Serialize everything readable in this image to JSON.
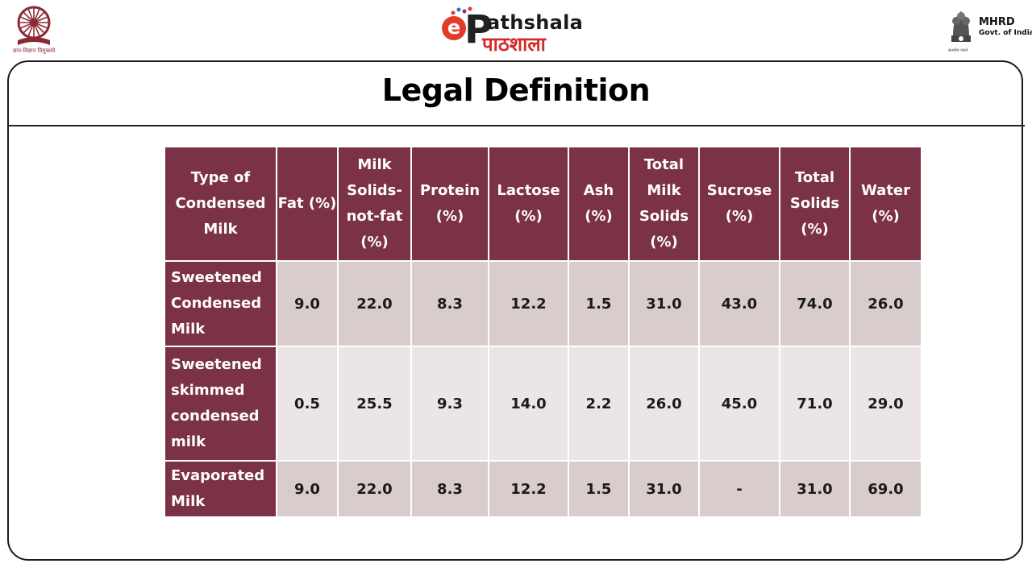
{
  "header": {
    "left_logo_tagline": "ज्ञान-विज्ञान विमुक्तये",
    "center_logo": {
      "letter_e": "e",
      "letter_p": "P",
      "word_latin": "athshala",
      "word_hindi": "पाठशाला"
    },
    "right_logo": {
      "name": "MHRD",
      "subtitle": "Govt. of India",
      "motto": "सत्यमेव जयते"
    }
  },
  "slide": {
    "title": "Legal Definition"
  },
  "table": {
    "headers": [
      "Type of Condensed Milk",
      "Fat (%)",
      "Milk Solids-not-fat (%)",
      "Protein (%)",
      "Lactose (%)",
      "Ash (%)",
      "Total Milk Solids (%)",
      "Sucrose (%)",
      "Total Solids (%)",
      "Water (%)"
    ],
    "rows": [
      {
        "type": "Sweetened Condensed Milk",
        "values": [
          "9.0",
          "22.0",
          "8.3",
          "12.2",
          "1.5",
          "31.0",
          "43.0",
          "74.0",
          "26.0"
        ]
      },
      {
        "type": "Sweetened skimmed condensed milk",
        "values": [
          "0.5",
          "25.5",
          "9.3",
          "14.0",
          "2.2",
          "26.0",
          "45.0",
          "71.0",
          "29.0"
        ]
      },
      {
        "type": "Evaporated Milk",
        "values": [
          "9.0",
          "22.0",
          "8.3",
          "12.2",
          "1.5",
          "31.0",
          "-",
          "31.0",
          "69.0"
        ]
      }
    ]
  },
  "colors": {
    "header_bg": "#7b3146",
    "cell_dark": "#d9cccd",
    "cell_light": "#ece5e6"
  },
  "icons": {
    "left_logo": "university-wheel-logo",
    "center_logo": "epathshala-logo",
    "right_logo": "ashoka-emblem-icon"
  }
}
